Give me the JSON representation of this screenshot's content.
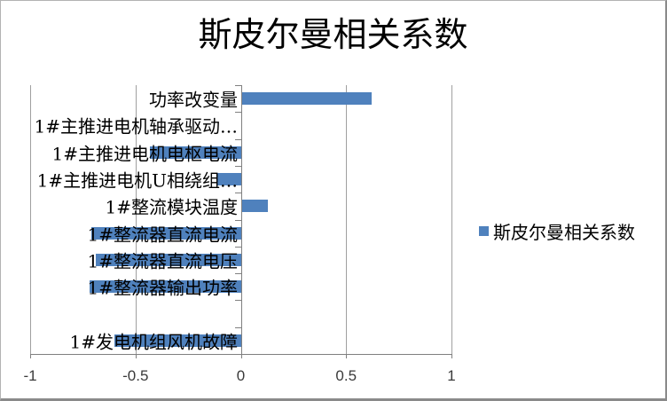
{
  "title": "斯皮尔曼相关系数",
  "legend": {
    "label": "斯皮尔曼相关系数"
  },
  "colors": {
    "bar": "#4f81bd",
    "gridline": "#a0a0a0",
    "axis": "#808080"
  },
  "chart_data": {
    "type": "bar",
    "orientation": "horizontal",
    "title": "斯皮尔曼相关系数",
    "series_name": "斯皮尔曼相关系数",
    "categories": [
      "功率改变量",
      "1#主推进电机轴承驱动…",
      "1#主推进电机电枢电流",
      "1#主推进电机U相绕组…",
      "1#整流模块温度",
      "1#整流器直流电流",
      "1#整流器直流电压",
      "1#整流器输出功率",
      "",
      "1#发电机组风机故障"
    ],
    "values": [
      0.62,
      0,
      -0.43,
      -0.11,
      0.13,
      -0.71,
      -0.69,
      -0.72,
      0,
      -0.6
    ],
    "xlim": [
      -1,
      1
    ],
    "x_ticks": [
      -1,
      -0.5,
      0,
      0.5,
      1
    ],
    "x_tick_labels": [
      "-1",
      "-0.5",
      "0",
      "0.5",
      "1"
    ],
    "grid": true,
    "legend_position": "right"
  }
}
